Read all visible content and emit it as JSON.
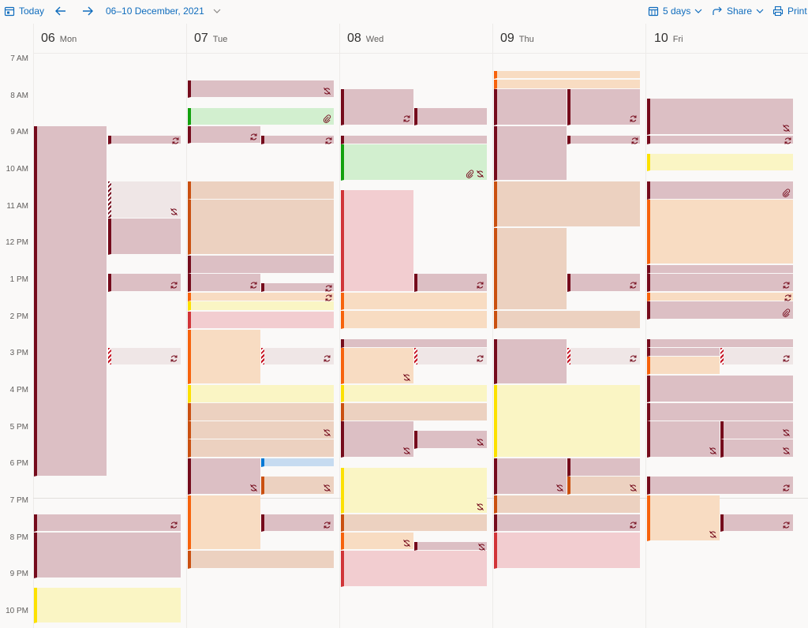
{
  "toolbar": {
    "today_label": "Today",
    "date_range": "06–10 December, 2021",
    "view_label": "5 days",
    "share_label": "Share",
    "print_label": "Print",
    "accent": "#0f6cbd"
  },
  "days": [
    {
      "num": "06",
      "name": "Mon"
    },
    {
      "num": "07",
      "name": "Tue"
    },
    {
      "num": "08",
      "name": "Wed"
    },
    {
      "num": "09",
      "name": "Thu"
    },
    {
      "num": "10",
      "name": "Fri"
    }
  ],
  "hours": [
    "7 AM",
    "8 AM",
    "9 AM",
    "10 AM",
    "11 AM",
    "12 PM",
    "1 PM",
    "2 PM",
    "3 PM",
    "4 PM",
    "5 PM",
    "6 PM",
    "7 PM",
    "8 PM",
    "9 PM",
    "10 PM"
  ],
  "category_colors": {
    "maroon": {
      "bar": "#750b1c",
      "fill": "#dcbfc4"
    },
    "orange_dark": {
      "bar": "#ca5010",
      "fill": "#ecd1c0"
    },
    "orange": {
      "bar": "#f7630c",
      "fill": "#f8dcc2"
    },
    "yellow": {
      "bar": "#fce100",
      "fill": "#faf5c4"
    },
    "green": {
      "bar": "#13a10e",
      "fill": "#d2efcf"
    },
    "red": {
      "bar": "#d13438",
      "fill": "#f2cdd0"
    },
    "blue": {
      "bar": "#0078d4",
      "fill": "#c6dbf0"
    }
  },
  "event_icons": [
    "recurring-icon",
    "not-recurring-icon",
    "attachment-icon"
  ]
}
